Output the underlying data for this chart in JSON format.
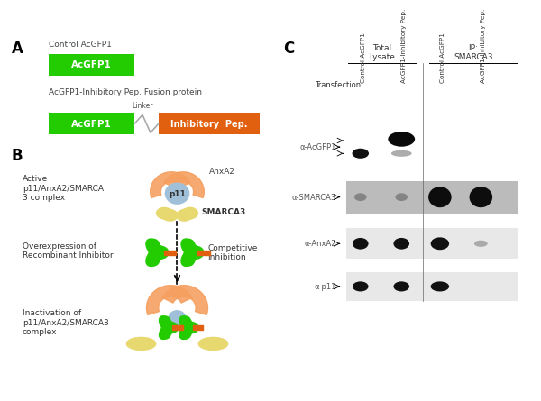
{
  "title_A": "A",
  "title_B": "B",
  "title_C": "C",
  "label_control": "Control AcGFP1",
  "label_acgfp1": "AcGFP1",
  "label_fusion": "AcGFP1-Inhibitory Pep. Fusion protein",
  "label_linker": "Linker",
  "label_inhibitory": "Inhibitory  Pep.",
  "label_active": "Active\np11/AnxA2/SMARCA\n3 complex",
  "label_overexp": "Overexpression of\nRecombinant Inhibitor",
  "label_inactive": "Inactivation of\np11/AnxA2/SMARCA3\ncomplex",
  "label_competitive": "Competitive\nInhibition",
  "label_AnxA2": "AnxA2",
  "label_SMARCA3": "SMARCA3",
  "label_p11": "p11",
  "col_green": "#22cc00",
  "col_orange": "#e06010",
  "col_salmon": "#f5a060",
  "col_blue": "#a0bfd8",
  "col_yellow": "#e8d870",
  "col_gray": "#aaaaaa",
  "col_white": "#ffffff",
  "col_black": "#000000",
  "total_lysate_label": "Total\nLysate",
  "ip_label": "IP:\nSMARCA3",
  "transfection_label": "Transfection:",
  "col1_label": "Control AcGFP1",
  "col2_label": "AcGFP1-Inhibitory Pep.",
  "col3_label": "Control AcGFP1",
  "col4_label": "AcGFP1-Inhibitory Pep.",
  "row1_label": "α-AcGFP1",
  "row2_label": "α-SMARCA3",
  "row3_label": "α-AnxA2",
  "row4_label": "α-p11"
}
